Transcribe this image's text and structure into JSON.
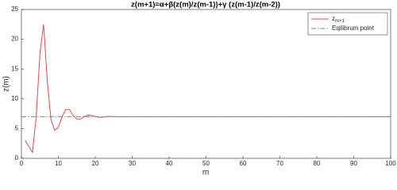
{
  "chart_data": {
    "type": "line",
    "title": "z(m+1)=α+β(z(m)/z(m-1))+γ (z(m-1)/z(m-2))",
    "x_label": "m",
    "y_label": "z(m)",
    "xlim": [
      0,
      100
    ],
    "xticks": [
      0,
      10,
      20,
      30,
      40,
      50,
      60,
      70,
      80,
      90,
      100
    ],
    "ylim": [
      0,
      25
    ],
    "yticks": [
      0,
      5,
      10,
      15,
      20,
      25
    ],
    "grid": false,
    "legend": "top-right",
    "series": [
      {
        "name": "zm+1",
        "color": "#e8474a",
        "style": "solid",
        "x": [
          1,
          2,
          3,
          4,
          5,
          6,
          7,
          8,
          9,
          10,
          11,
          12,
          13,
          14,
          15,
          16,
          17,
          18,
          19,
          20,
          21,
          22,
          23,
          24,
          25,
          26,
          27,
          28,
          29,
          30,
          31,
          32,
          33,
          34,
          35,
          36,
          37,
          38,
          39,
          40,
          41,
          42,
          43,
          44,
          45,
          46,
          47,
          48,
          49,
          50,
          51,
          52,
          53,
          54,
          55,
          56,
          57,
          58,
          59,
          60,
          61,
          62,
          63,
          64,
          65,
          66,
          67,
          68,
          69,
          70,
          71,
          72,
          73,
          74,
          75,
          76,
          77,
          78,
          79,
          80,
          81,
          82,
          83,
          84,
          85,
          86,
          87,
          88,
          89,
          90,
          91,
          92,
          93,
          94,
          95,
          96,
          97,
          98,
          99,
          100
        ],
        "values": [
          3,
          2,
          1,
          7,
          17.5,
          22.5,
          13,
          6.5,
          4.7,
          5.2,
          7,
          8.2,
          8.2,
          7.2,
          6.6,
          6.6,
          7,
          7.3,
          7.2,
          7,
          6.9,
          6.9,
          7,
          7.05,
          7,
          7,
          7,
          7,
          7,
          7,
          7,
          7,
          7,
          7,
          7,
          7,
          7,
          7,
          7,
          7,
          7,
          7,
          7,
          7,
          7,
          7,
          7,
          7,
          7,
          7,
          7,
          7,
          7,
          7,
          7,
          7,
          7,
          7,
          7,
          7,
          7,
          7,
          7,
          7,
          7,
          7,
          7,
          7,
          7,
          7,
          7,
          7,
          7,
          7,
          7,
          7,
          7,
          7,
          7,
          7,
          7,
          7,
          7,
          7,
          7,
          7,
          7,
          7,
          7,
          7,
          7,
          7,
          7,
          7,
          7,
          7,
          7,
          7,
          7,
          7
        ]
      },
      {
        "name": "Eqilibrum point",
        "color": "#4a8fd0",
        "style": "dashdot",
        "x": [
          0,
          100
        ],
        "values": [
          7,
          7
        ]
      }
    ]
  }
}
